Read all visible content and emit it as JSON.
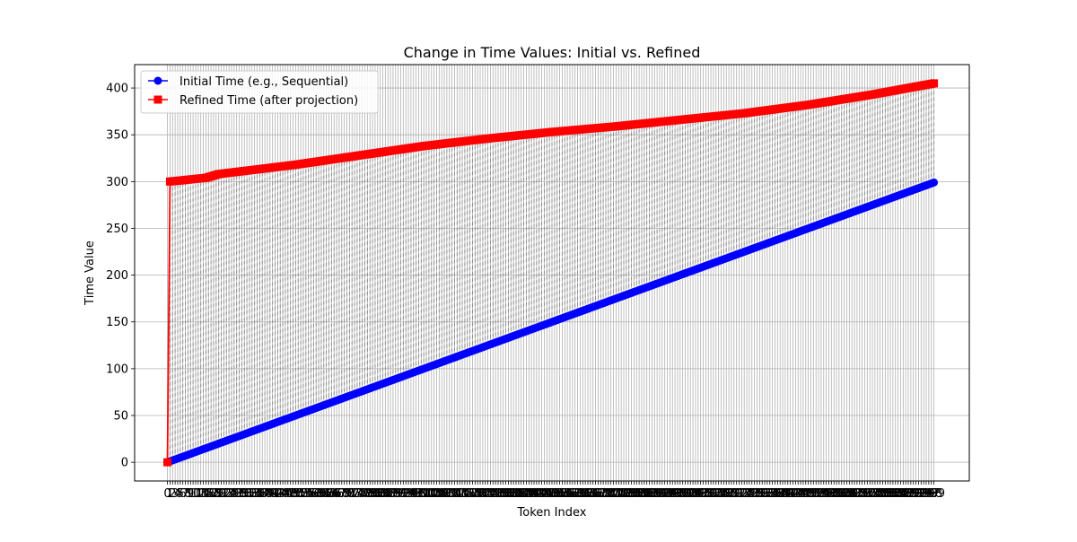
{
  "chart_data": {
    "type": "line",
    "title": "Change in Time Values: Initial vs. Refined",
    "xlabel": "Token Index",
    "ylabel": "Time Value",
    "x_range": [
      0,
      299
    ],
    "xlim": [
      -12.8,
      312.8
    ],
    "ylim": [
      -20,
      425
    ],
    "y_ticks": [
      0,
      50,
      100,
      150,
      200,
      250,
      300,
      350,
      400
    ],
    "x_tick_step": 1,
    "x_tick_labels_first": "0",
    "x_tick_labels_last": "299",
    "grid": true,
    "legend_position": "upper left",
    "connector_style": "gray dashed vertical lines from initial to refined value at every token index",
    "series": [
      {
        "name": "Initial Time (e.g., Sequential)",
        "color": "#0000ff",
        "marker": "circle",
        "rule": "y = x",
        "x_start": 0,
        "x_end": 299
      },
      {
        "name": "Refined Time (after projection)",
        "color": "#ff0000",
        "marker": "square",
        "first_point": [
          0,
          0
        ],
        "anchors": [
          [
            1,
            300
          ],
          [
            15,
            304
          ],
          [
            20,
            308
          ],
          [
            50,
            318
          ],
          [
            75,
            328
          ],
          [
            100,
            338
          ],
          [
            125,
            346
          ],
          [
            150,
            353
          ],
          [
            175,
            359
          ],
          [
            200,
            366
          ],
          [
            225,
            373
          ],
          [
            250,
            382
          ],
          [
            275,
            393
          ],
          [
            299,
            405
          ]
        ]
      }
    ]
  }
}
